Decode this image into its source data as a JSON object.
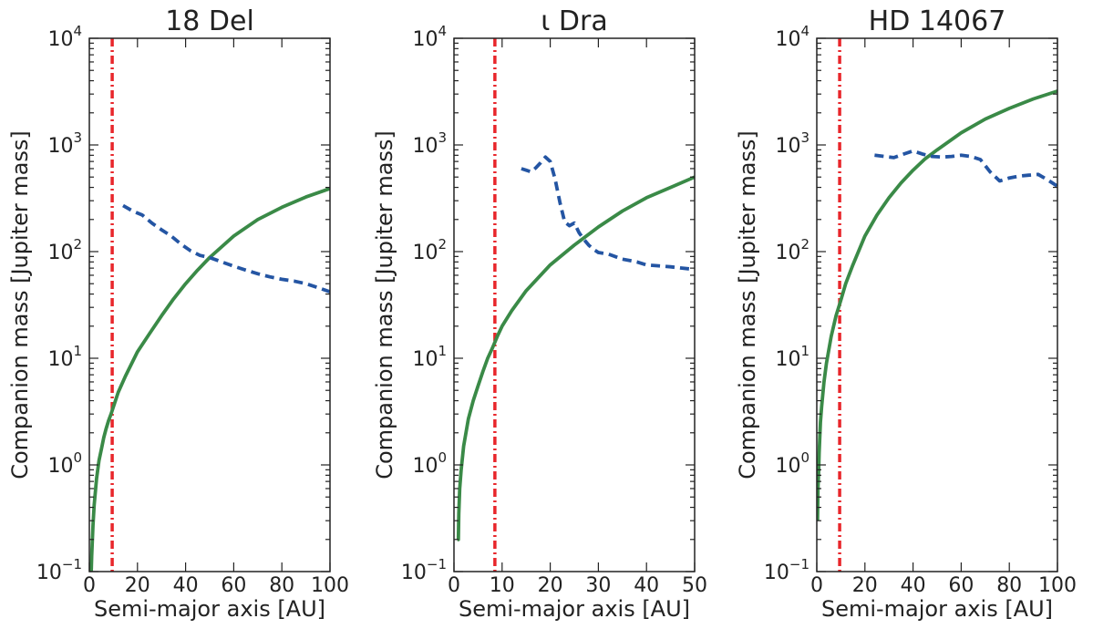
{
  "chart_data": [
    {
      "type": "line",
      "title": "18 Del",
      "xlabel": "Semi-major axis [AU]",
      "ylabel": "Companion mass [Jupiter mass]",
      "xlim": [
        0,
        100
      ],
      "ylim": [
        0.1,
        10000
      ],
      "yscale": "log",
      "xticks": [
        0,
        20,
        40,
        60,
        80,
        100
      ],
      "ytick_exponents": [
        -1,
        0,
        1,
        2,
        3,
        4
      ],
      "vline": {
        "x": 9.5,
        "color": "#e8262b"
      },
      "series": [
        {
          "style": "solid",
          "color": "#3a8a47",
          "x": [
            0.8,
            1,
            1.5,
            2,
            3,
            4,
            5,
            6,
            7,
            8,
            9,
            10,
            12,
            15,
            20,
            25,
            30,
            35,
            40,
            45,
            50,
            60,
            70,
            80,
            90,
            100
          ],
          "y": [
            0.1,
            0.14,
            0.27,
            0.42,
            0.74,
            1.1,
            1.4,
            1.8,
            2.2,
            2.6,
            3.0,
            3.5,
            4.8,
            6.8,
            11.5,
            17,
            25,
            36,
            50,
            67,
            88,
            140,
            200,
            260,
            325,
            390
          ]
        },
        {
          "style": "dashed",
          "color": "#2455a3",
          "x": [
            14,
            18,
            22,
            26,
            30,
            34,
            38,
            42,
            46,
            50,
            55,
            60,
            65,
            70,
            75,
            80,
            85,
            90,
            95,
            100
          ],
          "y": [
            270,
            240,
            220,
            185,
            160,
            140,
            118,
            102,
            92,
            88,
            80,
            73,
            67,
            62,
            58,
            55,
            53,
            50,
            46,
            42
          ]
        }
      ]
    },
    {
      "type": "line",
      "title": "ι Dra",
      "xlabel": "Semi-major axis [AU]",
      "ylabel": "Companion mass [Jupiter mass]",
      "xlim": [
        0,
        50
      ],
      "ylim": [
        0.1,
        10000
      ],
      "yscale": "log",
      "xticks": [
        0,
        10,
        20,
        30,
        40,
        50
      ],
      "ytick_exponents": [
        -1,
        0,
        1,
        2,
        3,
        4
      ],
      "vline": {
        "x": 8.5,
        "color": "#e8262b"
      },
      "series": [
        {
          "style": "solid",
          "color": "#3a8a47",
          "x": [
            0.7,
            0.9,
            1,
            1.2,
            1.5,
            2,
            3,
            4,
            5,
            6,
            7,
            8,
            9,
            10,
            12,
            15,
            20,
            25,
            30,
            35,
            40,
            45,
            50
          ],
          "y": [
            0.2,
            0.2,
            0.35,
            0.6,
            0.9,
            1.5,
            2.7,
            4,
            5.5,
            7.5,
            10,
            12.5,
            16,
            20,
            28,
            43,
            75,
            115,
            170,
            240,
            320,
            400,
            500
          ]
        },
        {
          "style": "dashed",
          "color": "#2455a3",
          "x": [
            14,
            15,
            16,
            17,
            18,
            19,
            20,
            21,
            22,
            23,
            24,
            25,
            26,
            27,
            28,
            29,
            30,
            32,
            35,
            38,
            40,
            45,
            50
          ],
          "y": [
            600,
            580,
            560,
            610,
            680,
            770,
            700,
            480,
            290,
            190,
            175,
            185,
            150,
            130,
            115,
            105,
            98,
            95,
            85,
            80,
            75,
            72,
            68
          ]
        }
      ]
    },
    {
      "type": "line",
      "title": "HD 14067",
      "xlabel": "Semi-major axis [AU]",
      "ylabel": "Companion mass [Jupiter mass]",
      "xlim": [
        0,
        100
      ],
      "ylim": [
        0.1,
        10000
      ],
      "yscale": "log",
      "xticks": [
        0,
        20,
        40,
        60,
        80,
        100
      ],
      "ytick_exponents": [
        -1,
        0,
        1,
        2,
        3,
        4
      ],
      "vline": {
        "x": 9.5,
        "color": "#e8262b"
      },
      "series": [
        {
          "style": "solid",
          "color": "#3a8a47",
          "x": [
            0.3,
            0.5,
            0.8,
            1,
            1.5,
            2,
            3,
            4,
            5,
            6,
            8,
            10,
            12,
            15,
            20,
            25,
            30,
            35,
            40,
            45,
            50,
            60,
            70,
            80,
            90,
            100
          ],
          "y": [
            0.3,
            0.6,
            0.9,
            1.3,
            2.5,
            3.5,
            6,
            9,
            12,
            16,
            25,
            35,
            50,
            75,
            140,
            220,
            320,
            440,
            580,
            740,
            900,
            1300,
            1750,
            2200,
            2700,
            3200
          ]
        },
        {
          "style": "dashed",
          "color": "#2455a3",
          "x": [
            24,
            28,
            32,
            36,
            40,
            44,
            48,
            52,
            56,
            60,
            64,
            68,
            72,
            76,
            80,
            84,
            88,
            92,
            96,
            100
          ],
          "y": [
            800,
            780,
            760,
            820,
            880,
            820,
            780,
            770,
            780,
            800,
            780,
            730,
            560,
            460,
            490,
            510,
            520,
            530,
            470,
            410
          ]
        }
      ]
    }
  ]
}
